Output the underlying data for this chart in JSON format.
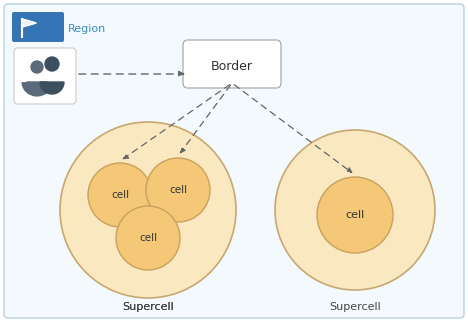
{
  "fig_width": 4.68,
  "fig_height": 3.22,
  "dpi": 100,
  "bg_color": "#ffffff",
  "outer_border_color": "#b8d0e0",
  "outer_border_fill": "#f4f9fd",
  "region_label": "Region",
  "region_label_color": "#3a8fc4",
  "region_header_blue": "#3575b5",
  "border_box_label": "Border",
  "supercell1_label": "Supercell",
  "supercell2_label": "Supercell",
  "supercell_fill": "#fae8c0",
  "supercell_edge": "#c8a870",
  "cell_fill": "#f5c878",
  "cell_edge": "#c8a060",
  "arrow_color": "#555555",
  "dashed_color": "#666666",
  "text_color": "#444444",
  "cell_text_color": "#333333"
}
